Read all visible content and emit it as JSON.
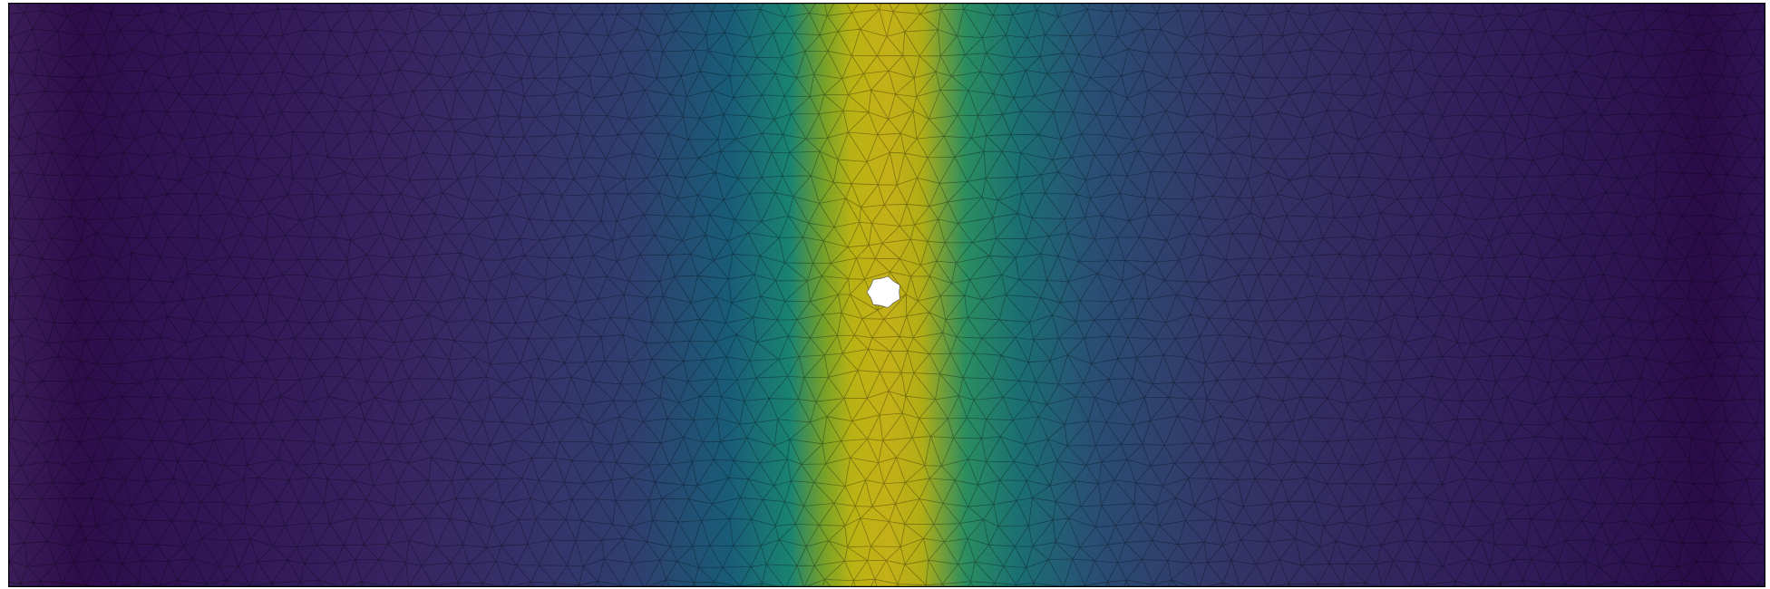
{
  "figure": {
    "colormap": "viridis",
    "field_stops": [
      {
        "x": 0.0,
        "color": "#3b1d5a"
      },
      {
        "x": 0.04,
        "color": "#2e0d4a"
      },
      {
        "x": 0.08,
        "color": "#2f1252"
      },
      {
        "x": 0.2,
        "color": "#36205e"
      },
      {
        "x": 0.3,
        "color": "#35326a"
      },
      {
        "x": 0.36,
        "color": "#2e406f"
      },
      {
        "x": 0.41,
        "color": "#195c78"
      },
      {
        "x": 0.445,
        "color": "#1a8371"
      },
      {
        "x": 0.465,
        "color": "#7aa227"
      },
      {
        "x": 0.48,
        "color": "#b9b215"
      },
      {
        "x": 0.5,
        "color": "#c4b018"
      },
      {
        "x": 0.52,
        "color": "#b1ad17"
      },
      {
        "x": 0.545,
        "color": "#2a8d60"
      },
      {
        "x": 0.575,
        "color": "#1b6f73"
      },
      {
        "x": 0.62,
        "color": "#2a4d74"
      },
      {
        "x": 0.7,
        "color": "#343366"
      },
      {
        "x": 0.82,
        "color": "#31215c"
      },
      {
        "x": 0.93,
        "color": "#2c1350"
      },
      {
        "x": 0.965,
        "color": "#2a0b47"
      },
      {
        "x": 1.0,
        "color": "#2f1454"
      }
    ],
    "mesh_color": "#000000",
    "mesh_opacity": 0.35,
    "hole_color": "#ffffff",
    "hole_center": [
      0.4985,
      0.495
    ],
    "hole_radius": 0.009
  }
}
